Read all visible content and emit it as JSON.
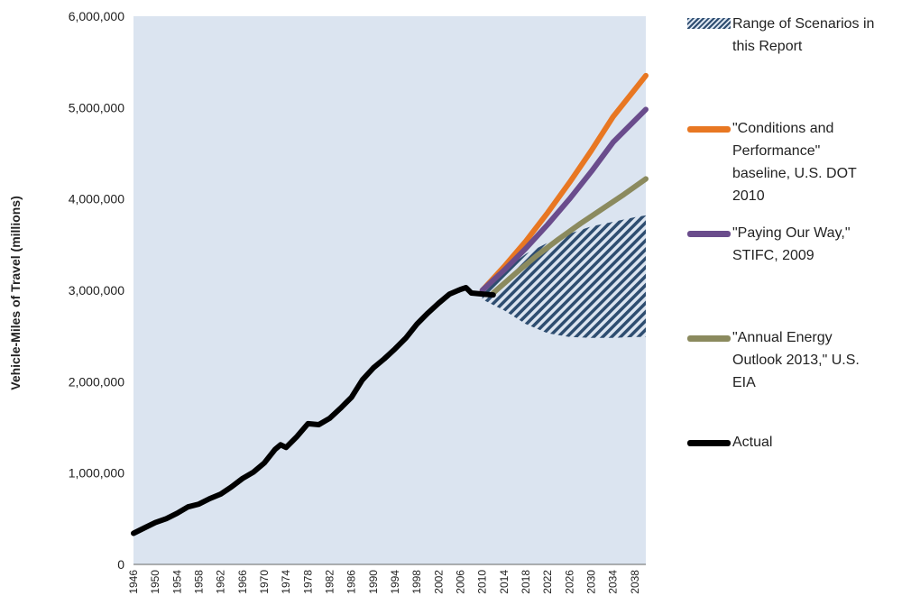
{
  "chart_data": {
    "type": "line",
    "ylabel": "Vehicle-Miles of Travel (millions)",
    "xlabel": "",
    "ylim": [
      0,
      6000000
    ],
    "xlim": [
      1946,
      2040
    ],
    "yticks": [
      "0",
      "1,000,000",
      "2,000,000",
      "3,000,000",
      "4,000,000",
      "5,000,000",
      "6,000,000"
    ],
    "xticks": [
      "1946",
      "1950",
      "1954",
      "1958",
      "1962",
      "1966",
      "1970",
      "1974",
      "1978",
      "1982",
      "1986",
      "1990",
      "1994",
      "1998",
      "2002",
      "2006",
      "2010",
      "2014",
      "2018",
      "2022",
      "2026",
      "2030",
      "2034",
      "2038"
    ],
    "plot_background": "#dbe4f0",
    "range_band": {
      "name": "Range of Scenarios in this Report",
      "color": "#2e4d70",
      "x": [
        2010,
        2014,
        2018,
        2022,
        2026,
        2030,
        2034,
        2038,
        2040
      ],
      "upper": [
        3000000,
        3220000,
        3400000,
        3520000,
        3620000,
        3700000,
        3750000,
        3800000,
        3820000
      ],
      "lower": [
        2900000,
        2780000,
        2630000,
        2530000,
        2490000,
        2480000,
        2480000,
        2490000,
        2490000
      ]
    },
    "series": [
      {
        "name": "\"Conditions and Performance\" baseline, U.S. DOT 2010",
        "color": "#e87722",
        "x": [
          2010,
          2014,
          2018,
          2022,
          2026,
          2030,
          2034,
          2038,
          2040
        ],
        "values": [
          3000000,
          3260000,
          3540000,
          3850000,
          4180000,
          4530000,
          4900000,
          5200000,
          5350000
        ]
      },
      {
        "name": "\"Paying Our Way,\" STIFC, 2009",
        "color": "#6a4c8c",
        "x": [
          2010,
          2014,
          2018,
          2022,
          2026,
          2030,
          2034,
          2038,
          2040
        ],
        "values": [
          3000000,
          3220000,
          3460000,
          3720000,
          4000000,
          4300000,
          4620000,
          4860000,
          4980000
        ]
      },
      {
        "name": "\"Annual Energy Outlook 2013,\" U.S. EIA",
        "color": "#8b8a5e",
        "x": [
          2012,
          2016,
          2020,
          2024,
          2028,
          2032,
          2036,
          2040
        ],
        "values": [
          2970000,
          3180000,
          3380000,
          3560000,
          3730000,
          3890000,
          4050000,
          4220000
        ]
      },
      {
        "name": "Actual",
        "color": "#000000",
        "x": [
          1946,
          1948,
          1950,
          1952,
          1954,
          1956,
          1958,
          1960,
          1962,
          1964,
          1966,
          1968,
          1970,
          1972,
          1973,
          1974,
          1976,
          1978,
          1980,
          1982,
          1984,
          1986,
          1988,
          1990,
          1992,
          1994,
          1996,
          1998,
          2000,
          2002,
          2004,
          2006,
          2007,
          2008,
          2010,
          2012
        ],
        "values": [
          340000,
          400000,
          458000,
          500000,
          560000,
          630000,
          660000,
          720000,
          770000,
          850000,
          940000,
          1010000,
          1110000,
          1260000,
          1310000,
          1280000,
          1400000,
          1540000,
          1530000,
          1600000,
          1710000,
          1830000,
          2020000,
          2150000,
          2250000,
          2360000,
          2480000,
          2630000,
          2750000,
          2860000,
          2960000,
          3010000,
          3030000,
          2970000,
          2960000,
          2950000
        ]
      }
    ]
  },
  "legend": [
    {
      "label": "Range of Scenarios in\nthis Report"
    },
    {
      "label": "\"Conditions and\nPerformance\"\nbaseline, U.S. DOT\n2010"
    },
    {
      "label": "\"Paying Our Way,\"\nSTIFC, 2009"
    },
    {
      "label": "\"Annual Energy\nOutlook 2013,\" U.S.\nEIA"
    },
    {
      "label": "Actual"
    }
  ]
}
